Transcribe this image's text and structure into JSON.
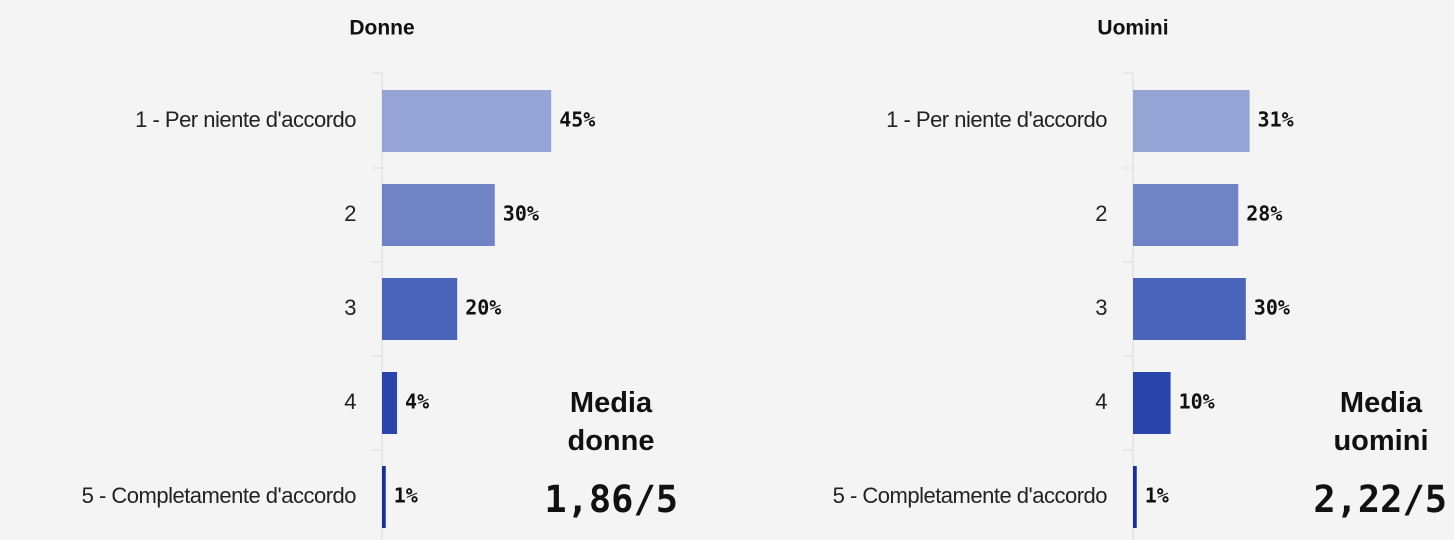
{
  "chart_data": [
    {
      "type": "bar",
      "orientation": "horizontal",
      "title": "Donne",
      "categories": [
        "1 - Per niente d'accordo",
        "2",
        "3",
        "4",
        "5 - Completamente d'accordo"
      ],
      "values": [
        45,
        30,
        20,
        4,
        1
      ],
      "value_labels": [
        "45%",
        "30%",
        "20%",
        "4%",
        "1%"
      ],
      "colors": [
        "#95a4d4",
        "#6f83c5",
        "#4964b8",
        "#2a45aa",
        "#1c2f98"
      ],
      "xlim": [
        0,
        100
      ],
      "annotation": {
        "label": "Media donne",
        "value": "1,86/5"
      }
    },
    {
      "type": "bar",
      "orientation": "horizontal",
      "title": "Uomini",
      "categories": [
        "1 - Per niente d'accordo",
        "2",
        "3",
        "4",
        "5 - Completamente d'accordo"
      ],
      "values": [
        31,
        28,
        30,
        10,
        1
      ],
      "value_labels": [
        "31%",
        "28%",
        "30%",
        "10%",
        "1%"
      ],
      "colors": [
        "#95a4d4",
        "#6f83c5",
        "#4964b8",
        "#2a45aa",
        "#1c2f98"
      ],
      "xlim": [
        0,
        100
      ],
      "annotation": {
        "label": "Media uomini",
        "value": "2,22/5"
      }
    }
  ]
}
